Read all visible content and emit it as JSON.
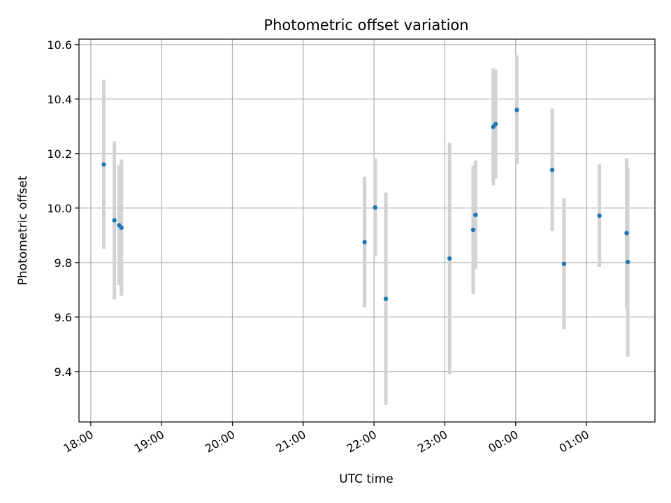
{
  "chart_data": {
    "type": "scatter",
    "title": "Photometric offset variation",
    "xlabel": "UTC time",
    "ylabel": "Photometric offset",
    "x_ticks": [
      "18:00",
      "19:00",
      "20:00",
      "21:00",
      "22:00",
      "23:00",
      "00:00",
      "01:00"
    ],
    "y_ticks": [
      "9.4",
      "9.6",
      "9.8",
      "10.0",
      "10.2",
      "10.4",
      "10.6"
    ],
    "xlim": [
      "17:50",
      "25:58"
    ],
    "ylim": [
      9.215,
      10.62
    ],
    "grid": true,
    "colors": {
      "marker": "#1f77b4",
      "errorbar": "#d3d3d3",
      "grid": "#b0b0b0"
    },
    "points": [
      {
        "x": "18:11",
        "y": 10.16,
        "err": 0.31
      },
      {
        "x": "18:20",
        "y": 9.955,
        "err": 0.29
      },
      {
        "x": "18:24",
        "y": 9.937,
        "err": 0.22
      },
      {
        "x": "18:26",
        "y": 9.928,
        "err": 0.25
      },
      {
        "x": "21:52",
        "y": 9.875,
        "err": 0.24
      },
      {
        "x": "22:01",
        "y": 10.002,
        "err": 0.18
      },
      {
        "x": "22:10",
        "y": 9.667,
        "err": 0.39
      },
      {
        "x": "23:04",
        "y": 9.815,
        "err": 0.425
      },
      {
        "x": "23:24",
        "y": 9.92,
        "err": 0.235
      },
      {
        "x": "23:26",
        "y": 9.975,
        "err": 0.2
      },
      {
        "x": "23:41",
        "y": 10.298,
        "err": 0.215
      },
      {
        "x": "23:43",
        "y": 10.308,
        "err": 0.2
      },
      {
        "x": "00:01",
        "y": 10.36,
        "err": 0.2
      },
      {
        "x": "00:31",
        "y": 10.14,
        "err": 0.225
      },
      {
        "x": "00:41",
        "y": 9.795,
        "err": 0.24
      },
      {
        "x": "01:11",
        "y": 9.972,
        "err": 0.188
      },
      {
        "x": "01:34",
        "y": 9.908,
        "err": 0.275
      },
      {
        "x": "01:35",
        "y": 9.802,
        "err": 0.348
      }
    ]
  }
}
